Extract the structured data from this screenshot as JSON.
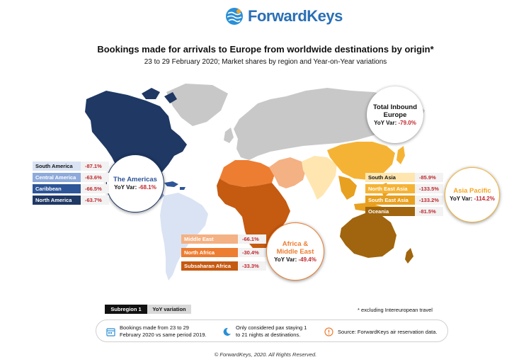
{
  "logo": {
    "text": "ForwardKeys",
    "icon": "globe-logo-icon"
  },
  "title": "Bookings made for arrivals to Europe from worldwide destinations by origin*",
  "subtitle": "23 to 29 February 2020; Market shares by region and Year-on-Year variations",
  "colors": {
    "americas_dark": "#1f3864",
    "americas_mid": "#2e5597",
    "americas_light": "#8eaadb",
    "americas_pale": "#dae3f3",
    "africa_dark": "#c55a11",
    "africa_mid": "#ed7d31",
    "africa_light": "#f4b183",
    "asia_pale": "#ffe6b0",
    "asia_mid": "#f5b335",
    "asia_orange": "#e8a020",
    "oceania": "#a0650e",
    "europe_grey": "#c8c8c8",
    "negative": "#c0272d"
  },
  "europe": {
    "title_1": "Total Inbound",
    "title_2": "Europe",
    "var_label": "YoY Var:",
    "var_value": "-79.0%"
  },
  "americas": {
    "title": "The Americas",
    "var_label": "YoY Var:",
    "var_value": "-68.1%",
    "rows": [
      {
        "label": "South America",
        "value": "-87.1%"
      },
      {
        "label": "Central America",
        "value": "-63.6%"
      },
      {
        "label": "Caribbean",
        "value": "-66.5%"
      },
      {
        "label": "North America",
        "value": "-63.7%"
      }
    ]
  },
  "africa_me": {
    "title_1": "Africa &",
    "title_2": "Middle East",
    "var_label": "YoY Var:",
    "var_value": "-49.4%",
    "rows": [
      {
        "label": "Middle East",
        "value": "-66.1%"
      },
      {
        "label": "North Africa",
        "value": "-30.4%"
      },
      {
        "label": "Subsaharan Africa",
        "value": "-33.3%"
      }
    ]
  },
  "asia_pacific": {
    "title": "Asia Pacific",
    "var_label": "YoY Var:",
    "var_value": "-114.2%",
    "rows": [
      {
        "label": "South Asia",
        "value": "-85.9%"
      },
      {
        "label": "North East Asia",
        "value": "-133.5%"
      },
      {
        "label": "South East Asia",
        "value": "-133.2%"
      },
      {
        "label": "Oceania",
        "value": "-81.5%"
      }
    ]
  },
  "legend": {
    "subregion": "Subregion 1",
    "yoy": "YoY variation"
  },
  "note": "* excluding Intereuropean travel",
  "footer": {
    "item1_line1": "Bookings made from 23 to 29",
    "item1_line2": "February 2020 vs same period 2019.",
    "item2_line1": "Only considered pax staying 1",
    "item2_line2": "to 21 nights at destinations.",
    "item3": "Source: ForwardKeys air reservation data."
  },
  "copyright": "© ForwardKeys, 2020. All Rights Reserved."
}
